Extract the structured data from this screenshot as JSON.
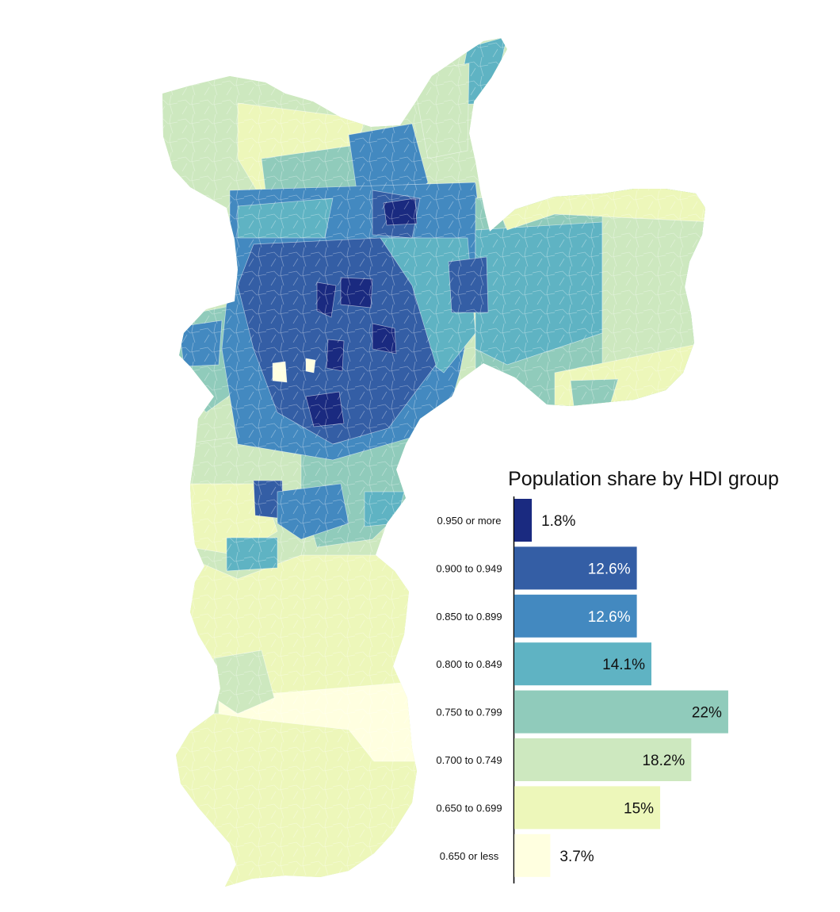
{
  "chart_data": [
    {
      "type": "map",
      "title": "",
      "description_levels": [
        "0.950 or more",
        "0.900 to 0.949",
        "0.850 to 0.899",
        "0.800 to 0.849",
        "0.750 to 0.799",
        "0.700 to 0.749",
        "0.650 to 0.699",
        "0.650 or less"
      ]
    },
    {
      "type": "bar",
      "orientation": "horizontal",
      "title": "Population share by HDI group",
      "categories": [
        "0.950 or more",
        "0.900 to 0.949",
        "0.850 to 0.899",
        "0.800 to 0.849",
        "0.750 to 0.799",
        "0.700 to 0.749",
        "0.650 to 0.699",
        "0.650 or less"
      ],
      "values": [
        1.8,
        12.6,
        12.6,
        14.1,
        22,
        18.2,
        15,
        3.7
      ],
      "value_labels": [
        "1.8%",
        "12.6%",
        "12.6%",
        "14.1%",
        "22%",
        "18.2%",
        "15%",
        "3.7%"
      ],
      "colors": [
        "#1a2a80",
        "#345ea5",
        "#4389c0",
        "#5fb3c3",
        "#90cbbb",
        "#cde8bf",
        "#edf7ba",
        "#ffffe0"
      ],
      "label_colors": [
        "#111111",
        "#ffffff",
        "#ffffff",
        "#111111",
        "#111111",
        "#111111",
        "#111111",
        "#111111"
      ],
      "xlim": [
        0,
        22
      ],
      "xlabel": "",
      "ylabel": ""
    }
  ]
}
